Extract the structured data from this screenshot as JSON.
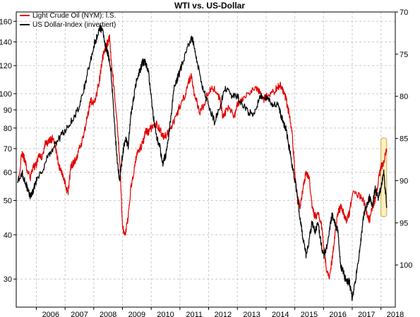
{
  "chart_data": {
    "type": "line",
    "title": "WTI vs. US-Dollar",
    "x_ticks": [
      "2006",
      "2007",
      "2008",
      "2009",
      "2010",
      "2011",
      "2012",
      "2013",
      "2014",
      "2015",
      "2016",
      "2017",
      "2018"
    ],
    "xlim": [
      2005.3,
      2018.5
    ],
    "y_left": {
      "scale": "log",
      "ylim": [
        25,
        170
      ],
      "ticks": [
        30,
        40,
        50,
        60,
        70,
        80,
        90,
        100,
        120,
        140,
        160
      ]
    },
    "y_right": {
      "inverted": true,
      "ylim": [
        70,
        105
      ],
      "ticks": [
        70,
        75,
        80,
        85,
        90,
        95,
        100
      ]
    },
    "grid": true,
    "legend_position": "top-left",
    "highlight_box": {
      "x": [
        2018.0,
        2018.2
      ],
      "y_left": [
        45,
        75
      ],
      "color": "#fff0c0"
    },
    "series": [
      {
        "name": "Light Crude Oil (NYM): l.S.",
        "color": "#e30000",
        "axis": "left",
        "x": [
          2005.35,
          2005.5,
          2005.6,
          2005.7,
          2005.8,
          2005.9,
          2006.0,
          2006.1,
          2006.2,
          2006.3,
          2006.4,
          2006.5,
          2006.6,
          2006.7,
          2006.8,
          2006.9,
          2007.0,
          2007.1,
          2007.2,
          2007.3,
          2007.4,
          2007.5,
          2007.6,
          2007.7,
          2007.8,
          2007.9,
          2008.0,
          2008.1,
          2008.2,
          2008.3,
          2008.4,
          2008.5,
          2008.55,
          2008.6,
          2008.7,
          2008.8,
          2008.9,
          2009.0,
          2009.1,
          2009.2,
          2009.3,
          2009.4,
          2009.5,
          2009.6,
          2009.7,
          2009.8,
          2009.9,
          2010.0,
          2010.2,
          2010.4,
          2010.5,
          2010.7,
          2010.9,
          2011.0,
          2011.2,
          2011.3,
          2011.4,
          2011.5,
          2011.7,
          2011.9,
          2012.0,
          2012.2,
          2012.4,
          2012.5,
          2012.7,
          2012.9,
          2013.0,
          2013.2,
          2013.5,
          2013.7,
          2013.9,
          2014.0,
          2014.2,
          2014.4,
          2014.5,
          2014.6,
          2014.7,
          2014.8,
          2014.9,
          2015.0,
          2015.1,
          2015.2,
          2015.3,
          2015.4,
          2015.5,
          2015.6,
          2015.7,
          2015.8,
          2015.9,
          2016.0,
          2016.1,
          2016.2,
          2016.3,
          2016.4,
          2016.5,
          2016.6,
          2016.7,
          2016.8,
          2016.9,
          2017.0,
          2017.2,
          2017.4,
          2017.5,
          2017.6,
          2017.7,
          2017.8,
          2017.9,
          2018.0,
          2018.1,
          2018.2
        ],
        "values": [
          55,
          68,
          65,
          60,
          58,
          62,
          63,
          68,
          66,
          72,
          73,
          74,
          75,
          68,
          62,
          59,
          56,
          52,
          62,
          64,
          66,
          70,
          74,
          80,
          88,
          96,
          93,
          100,
          110,
          125,
          135,
          140,
          145,
          125,
          105,
          85,
          65,
          42,
          40,
          45,
          55,
          60,
          68,
          70,
          72,
          78,
          78,
          80,
          82,
          76,
          76,
          80,
          88,
          92,
          100,
          108,
          112,
          100,
          88,
          96,
          102,
          104,
          96,
          86,
          92,
          86,
          94,
          96,
          102,
          104,
          96,
          98,
          100,
          104,
          106,
          102,
          96,
          88,
          78,
          60,
          50,
          48,
          55,
          60,
          58,
          48,
          45,
          46,
          44,
          38,
          32,
          30,
          34,
          40,
          46,
          48,
          46,
          44,
          46,
          52,
          52,
          50,
          46,
          44,
          48,
          50,
          56,
          62,
          64,
          70
        ]
      },
      {
        "name": "US Dollar-Index (invertiert)",
        "color": "#000000",
        "axis": "right",
        "x": [
          2005.35,
          2005.5,
          2005.6,
          2005.7,
          2005.8,
          2005.9,
          2006.0,
          2006.2,
          2006.4,
          2006.6,
          2006.8,
          2007.0,
          2007.2,
          2007.4,
          2007.6,
          2007.8,
          2008.0,
          2008.1,
          2008.2,
          2008.3,
          2008.4,
          2008.5,
          2008.6,
          2008.7,
          2008.8,
          2008.9,
          2009.0,
          2009.1,
          2009.2,
          2009.3,
          2009.4,
          2009.5,
          2009.6,
          2009.7,
          2009.8,
          2009.9,
          2010.0,
          2010.1,
          2010.2,
          2010.3,
          2010.4,
          2010.5,
          2010.6,
          2010.7,
          2010.8,
          2010.9,
          2011.0,
          2011.2,
          2011.4,
          2011.5,
          2011.6,
          2011.8,
          2012.0,
          2012.2,
          2012.4,
          2012.6,
          2012.8,
          2013.0,
          2013.2,
          2013.4,
          2013.6,
          2013.8,
          2014.0,
          2014.2,
          2014.4,
          2014.5,
          2014.6,
          2014.7,
          2014.8,
          2014.9,
          2015.0,
          2015.1,
          2015.2,
          2015.3,
          2015.4,
          2015.5,
          2015.6,
          2015.7,
          2015.8,
          2015.9,
          2016.0,
          2016.1,
          2016.2,
          2016.3,
          2016.4,
          2016.5,
          2016.6,
          2016.7,
          2016.8,
          2016.9,
          2017.0,
          2017.1,
          2017.2,
          2017.3,
          2017.4,
          2017.5,
          2017.6,
          2017.7,
          2017.8,
          2017.9,
          2018.0,
          2018.1,
          2018.15,
          2018.2
        ],
        "values": [
          90,
          89,
          90,
          91,
          92,
          91,
          90,
          89,
          87,
          86,
          85,
          84,
          83,
          82,
          80,
          77,
          74,
          73,
          72,
          72,
          74,
          75,
          77,
          82,
          87,
          90,
          87,
          85,
          86,
          82,
          80,
          78,
          77,
          76,
          76,
          77,
          80,
          83,
          85,
          86,
          88,
          87,
          85,
          82,
          79,
          78,
          77,
          75,
          73,
          74,
          76,
          79,
          81,
          83,
          81,
          79,
          80,
          80,
          81,
          82,
          82,
          80,
          80,
          81,
          81,
          82,
          83,
          84,
          86,
          88,
          90,
          92,
          95,
          97,
          99,
          97,
          95,
          96,
          95,
          97,
          99,
          98,
          96,
          94,
          95,
          96,
          100,
          101,
          102,
          102,
          104,
          102,
          100,
          97,
          94,
          93,
          92,
          93,
          91,
          92,
          91,
          89,
          91,
          93
        ]
      }
    ]
  }
}
